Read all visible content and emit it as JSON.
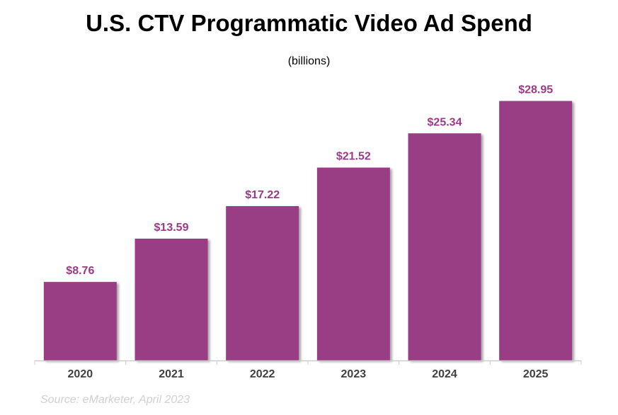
{
  "chart_data": {
    "type": "bar",
    "title": "U.S. CTV Programmatic Video Ad Spend",
    "subtitle": "(billions)",
    "categories": [
      "2020",
      "2021",
      "2022",
      "2023",
      "2024",
      "2025"
    ],
    "values": [
      8.76,
      13.59,
      17.22,
      21.52,
      25.34,
      28.95
    ],
    "data_labels": [
      "$8.76",
      "$13.59",
      "$17.22",
      "$21.52",
      "$25.34",
      "$28.95"
    ],
    "xlabel": "",
    "ylabel": "",
    "ylim": [
      0,
      35
    ],
    "grid": false,
    "legend": "none",
    "colors": {
      "bar": "#993d84",
      "label": "#9b3a86",
      "axis": "#cccccc",
      "tick_label": "#404040"
    },
    "source": "Source: eMarketer, April 2023"
  }
}
